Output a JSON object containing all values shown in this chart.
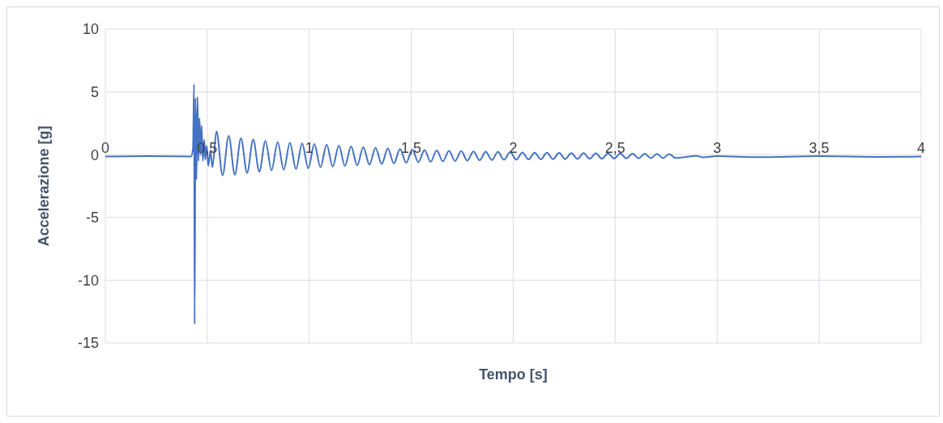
{
  "chart_data": {
    "type": "line",
    "xlabel": "Tempo [s]",
    "ylabel": "Accelerazione [g]",
    "xlim": [
      0,
      4
    ],
    "ylim": [
      -15,
      10
    ],
    "xticks": [
      0,
      {
        "value": 0.5,
        "label": "0,5"
      },
      1,
      {
        "value": 1.5,
        "label": "1,5"
      },
      2,
      {
        "value": 2.5,
        "label": "2,5"
      },
      3,
      {
        "value": 3.5,
        "label": "3,5"
      },
      4
    ],
    "yticks": [
      -15,
      -10,
      -5,
      0,
      5,
      10
    ],
    "grid": true,
    "marker": "none",
    "line_style": "solid",
    "series": [
      {
        "color": "#4472c4",
        "x": [
          0,
          0.2,
          0.42,
          0.43,
          0.435,
          0.438,
          0.442,
          0.447,
          0.452,
          0.457,
          0.462,
          0.467,
          0.472,
          0.478,
          0.485,
          0.49,
          0.497,
          0.505,
          0.515,
          0.525,
          0.545,
          0.575,
          0.605,
          0.635,
          0.665,
          0.695,
          0.725,
          0.755,
          0.785,
          0.815,
          0.845,
          0.875,
          0.905,
          0.935,
          0.965,
          0.995,
          1.025,
          1.055,
          1.085,
          1.115,
          1.145,
          1.175,
          1.205,
          1.235,
          1.265,
          1.295,
          1.325,
          1.355,
          1.385,
          1.415,
          1.445,
          1.475,
          1.505,
          1.535,
          1.565,
          1.595,
          1.625,
          1.655,
          1.685,
          1.715,
          1.745,
          1.775,
          1.805,
          1.835,
          1.865,
          1.895,
          1.925,
          1.955,
          1.985,
          2.015,
          2.045,
          2.075,
          2.105,
          2.135,
          2.165,
          2.195,
          2.225,
          2.255,
          2.285,
          2.315,
          2.345,
          2.375,
          2.405,
          2.435,
          2.465,
          2.495,
          2.525,
          2.555,
          2.585,
          2.615,
          2.645,
          2.675,
          2.705,
          2.735,
          2.765,
          2.795,
          2.9,
          2.93,
          3,
          3.2,
          3.5,
          3.8,
          4
        ],
        "values": [
          -0.15,
          -0.12,
          -0.15,
          0.5,
          5.6,
          -13.5,
          4.5,
          -2,
          4.6,
          -0.5,
          2.9,
          0,
          2.3,
          -0.5,
          1.2,
          -0.4,
          0.7,
          -0.9,
          0.3,
          -1,
          1.85,
          -1.65,
          1.5,
          -1.6,
          1.3,
          -1.45,
          1.2,
          -1.35,
          1.1,
          -1.25,
          1,
          -1.2,
          0.95,
          -1.15,
          0.9,
          -1.08,
          0.85,
          -1,
          0.8,
          -0.95,
          0.72,
          -0.9,
          0.66,
          -0.85,
          0.6,
          -0.8,
          0.55,
          -0.75,
          0.5,
          -0.7,
          0.45,
          -0.65,
          0.4,
          -0.6,
          0.37,
          -0.57,
          0.34,
          -0.54,
          0.31,
          -0.51,
          0.28,
          -0.48,
          0.26,
          -0.45,
          0.24,
          -0.43,
          0.22,
          -0.41,
          0.2,
          -0.4,
          0.18,
          -0.38,
          0.16,
          -0.37,
          0.15,
          -0.36,
          0.14,
          -0.35,
          0.13,
          -0.34,
          0.12,
          -0.33,
          0.11,
          -0.32,
          0.1,
          -0.31,
          0.09,
          -0.3,
          0.08,
          -0.29,
          0.07,
          -0.28,
          0.06,
          -0.27,
          0.05,
          -0.26,
          -0.1,
          -0.22,
          -0.12,
          -0.2,
          -0.12,
          -0.18,
          -0.15
        ]
      }
    ]
  }
}
